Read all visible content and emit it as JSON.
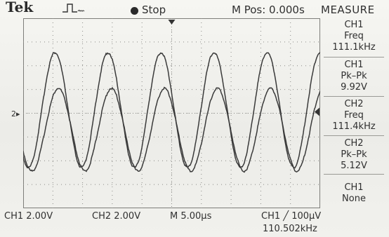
{
  "header": {
    "brand": "Tek",
    "run_state": "Stop",
    "main_position": "M Pos: 0.000s"
  },
  "measure_panel": {
    "title": "MEASURE",
    "items": [
      {
        "source": "CH1",
        "type": "Freq",
        "value": "111.1kHz"
      },
      {
        "source": "CH1",
        "type": "Pk–Pk",
        "value": "9.92V"
      },
      {
        "source": "CH2",
        "type": "Freq",
        "value": "111.4kHz"
      },
      {
        "source": "CH2",
        "type": "Pk–Pk",
        "value": "5.12V"
      },
      {
        "source": "CH1",
        "type": "None",
        "value": ""
      }
    ]
  },
  "status_bar": {
    "ch1_scale": "CH1  2.00V",
    "ch2_scale": "CH2  2.00V",
    "timebase": "M 5.00μs",
    "trigger": "CH1 ╱ 100μV",
    "trigger_frequency": "110.502kHz"
  },
  "channel_marker": "2",
  "colors": {
    "screen": "#efefeb",
    "trace": "#3a3a3a",
    "grid": "#8a8a86"
  }
}
